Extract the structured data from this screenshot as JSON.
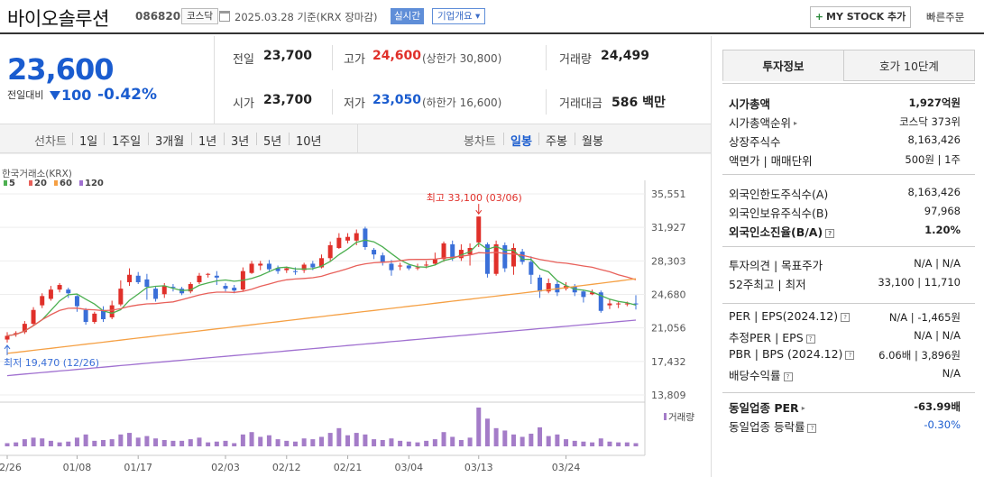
{
  "header": {
    "name": "바이오솔루션",
    "code": "086820",
    "market": "코스닥",
    "date_text": "2025.03.28  기준(KRX 장마감)",
    "live_label": "실시간",
    "corp_label": "기업개요 ▾",
    "mystock_label": "MY STOCK 추가",
    "fast_order_label": "빠른주문"
  },
  "price": {
    "current": "23,600",
    "change_label": "전일대비",
    "change_value": "100",
    "change_pct": "-0.42%"
  },
  "stats": {
    "prev_label": "전일",
    "prev": "23,700",
    "high_label": "고가",
    "high": "24,600",
    "upper_limit": "(상한가 30,800)",
    "volume_label": "거래량",
    "volume": "24,499",
    "open_label": "시가",
    "open": "23,700",
    "low_label": "저가",
    "low": "23,050",
    "lower_limit": "(하한가 16,600)",
    "amount_label": "거래대금",
    "amount": "586 백만"
  },
  "tabs": {
    "line_label": "선차트",
    "line_items": [
      "1일",
      "1주일",
      "3개월",
      "1년",
      "3년",
      "5년",
      "10년"
    ],
    "candle_label": "봉차트",
    "candle_items": [
      "일봉",
      "주봉",
      "월봉"
    ],
    "candle_active": "일봉"
  },
  "chart_data": {
    "type": "candlestick",
    "source_label": "한국거래소(KRX)",
    "legend": [
      "5",
      "20",
      "60",
      "120"
    ],
    "ma_colors": {
      "5": "#4caf50",
      "20": "#e8605a",
      "60": "#f5a044",
      "120": "#a070d0"
    },
    "yticks": [
      "35,551",
      "31,927",
      "28,303",
      "24,680",
      "21,056",
      "17,432",
      "13,809"
    ],
    "ylim": [
      13809,
      35551
    ],
    "xticks": [
      "12/26",
      "01/08",
      "01/17",
      "02/03",
      "02/12",
      "02/21",
      "03/04",
      "03/13",
      "03/24"
    ],
    "high_annotation": "최고 33,100 (03/06)",
    "low_annotation": "최저 19,470 (12/26)",
    "volume_label": "거래량",
    "candles": [
      [
        19800,
        20200,
        19470,
        20600
      ],
      [
        20500,
        20500,
        20100,
        20700
      ],
      [
        20600,
        21500,
        20400,
        21800
      ],
      [
        21500,
        23000,
        21300,
        23300
      ],
      [
        23500,
        24500,
        23200,
        24800
      ],
      [
        24200,
        25200,
        24000,
        25600
      ],
      [
        25200,
        25700,
        24900,
        25900
      ],
      [
        25200,
        24800,
        24300,
        25400
      ],
      [
        24500,
        23400,
        22800,
        24600
      ],
      [
        23000,
        21700,
        21400,
        23200
      ],
      [
        21700,
        22600,
        21500,
        22800
      ],
      [
        23000,
        22000,
        21700,
        23400
      ],
      [
        22200,
        23500,
        22000,
        24000
      ],
      [
        23600,
        25300,
        23400,
        26200
      ],
      [
        26000,
        26800,
        25600,
        27500
      ],
      [
        26700,
        26000,
        25800,
        27100
      ],
      [
        26300,
        25500,
        24100,
        26900
      ],
      [
        25300,
        24200,
        23900,
        25500
      ],
      [
        24700,
        25600,
        24300,
        25900
      ],
      [
        25500,
        25400,
        25000,
        25800
      ],
      [
        25300,
        24800,
        24600,
        25500
      ],
      [
        25000,
        25800,
        24800,
        26000
      ],
      [
        26000,
        26700,
        25800,
        27000
      ],
      [
        26800,
        26900,
        26500,
        27000
      ],
      [
        26700,
        26500,
        25700,
        27200
      ],
      [
        25600,
        25300,
        25000,
        25900
      ],
      [
        25400,
        25100,
        24800,
        25700
      ],
      [
        25200,
        27200,
        25000,
        27600
      ],
      [
        27000,
        28000,
        26900,
        28300
      ],
      [
        27800,
        28000,
        27300,
        28300
      ],
      [
        28000,
        27400,
        27200,
        28400
      ],
      [
        27500,
        27200,
        26900,
        27800
      ],
      [
        27300,
        27500,
        27000,
        27700
      ],
      [
        27200,
        27100,
        26800,
        27600
      ],
      [
        27300,
        27900,
        27000,
        28100
      ],
      [
        28000,
        27600,
        27300,
        28300
      ],
      [
        27600,
        28600,
        27500,
        29000
      ],
      [
        28600,
        30000,
        28300,
        30400
      ],
      [
        29700,
        30800,
        29600,
        31300
      ],
      [
        30500,
        30900,
        30200,
        31300
      ],
      [
        30500,
        31300,
        30000,
        31700
      ],
      [
        31800,
        29800,
        29500,
        32000
      ],
      [
        29500,
        29000,
        28500,
        29700
      ],
      [
        28900,
        28100,
        27800,
        29200
      ],
      [
        28000,
        27300,
        26700,
        28400
      ],
      [
        27800,
        27800,
        27300,
        28100
      ],
      [
        27800,
        27500,
        27300,
        28000
      ],
      [
        27600,
        27600,
        27300,
        28000
      ],
      [
        27800,
        27900,
        27500,
        28300
      ],
      [
        28000,
        28500,
        27800,
        29200
      ],
      [
        28500,
        30200,
        28200,
        30400
      ],
      [
        30100,
        28600,
        28300,
        30500
      ],
      [
        28600,
        29500,
        28300,
        30100
      ],
      [
        29000,
        29700,
        27800,
        30200
      ],
      [
        30300,
        33100,
        29800,
        33100
      ],
      [
        30100,
        26900,
        26500,
        30300
      ],
      [
        26900,
        30100,
        26700,
        30500
      ],
      [
        30000,
        27500,
        27100,
        30300
      ],
      [
        27700,
        29700,
        26800,
        30200
      ],
      [
        29300,
        28200,
        27900,
        29600
      ],
      [
        28200,
        26800,
        25800,
        28800
      ],
      [
        26500,
        25000,
        24300,
        26800
      ],
      [
        25000,
        25900,
        24800,
        26400
      ],
      [
        25800,
        24900,
        24500,
        26200
      ],
      [
        25300,
        25600,
        25100,
        26000
      ],
      [
        25500,
        24900,
        24500,
        25800
      ],
      [
        25000,
        24400,
        23800,
        25100
      ],
      [
        24700,
        24900,
        24600,
        25200
      ],
      [
        24900,
        22900,
        22700,
        25100
      ],
      [
        23500,
        23700,
        23100,
        24200
      ],
      [
        23600,
        23700,
        23200,
        23900
      ],
      [
        23700,
        23700,
        23400,
        23900
      ],
      [
        23700,
        23600,
        23050,
        24600
      ]
    ],
    "volume": [
      8,
      10,
      18,
      22,
      20,
      14,
      10,
      12,
      22,
      30,
      14,
      16,
      18,
      30,
      34,
      22,
      26,
      20,
      16,
      14,
      14,
      18,
      22,
      10,
      12,
      14,
      8,
      30,
      36,
      24,
      28,
      18,
      14,
      12,
      20,
      18,
      24,
      34,
      46,
      28,
      34,
      30,
      18,
      16,
      20,
      14,
      12,
      10,
      14,
      18,
      36,
      24,
      16,
      22,
      98,
      70,
      46,
      40,
      30,
      24,
      32,
      48,
      26,
      30,
      18,
      14,
      12,
      10,
      20,
      12,
      10,
      10,
      8
    ]
  },
  "right_panel": {
    "tab_active": "투자정보",
    "tab_other": "호가 10단계",
    "rows1": [
      {
        "label": "시가총액",
        "value": "1,927억원",
        "bold": true
      },
      {
        "label": "시가총액순위",
        "value": "코스닥 373위",
        "arrow": true
      },
      {
        "label": "상장주식수",
        "value": "8,163,426"
      },
      {
        "label": "액면가 | 매매단위",
        "value": "500원 | 1주"
      }
    ],
    "rows2": [
      {
        "label": "외국인한도주식수(A)",
        "value": "8,163,426"
      },
      {
        "label": "외국인보유주식수(B)",
        "value": "97,968"
      },
      {
        "label": "외국인소진율(B/A)",
        "value": "1.20%",
        "bold": true,
        "q": true
      }
    ],
    "rows3": [
      {
        "label": "투자의견 | 목표주가",
        "value": "N/A | N/A"
      },
      {
        "label": "52주최고 | 최저",
        "value": "33,100 | 11,710"
      }
    ],
    "rows4": [
      {
        "label": "PER | EPS(2024.12)",
        "value": "N/A | -1,465원",
        "q": true
      },
      {
        "label": "추정PER | EPS",
        "value": "N/A | N/A",
        "q": true
      },
      {
        "label": "PBR | BPS (2024.12)",
        "value": "6.06배 | 3,896원",
        "q": true
      },
      {
        "label": "배당수익률",
        "value": "N/A",
        "q": true
      }
    ],
    "rows5": [
      {
        "label": "동일업종 PER",
        "value": "-63.99배",
        "bold": true,
        "arrow": true
      },
      {
        "label": "동일업종 등락률",
        "value": "-0.30%",
        "blue": true,
        "q": true
      }
    ]
  }
}
